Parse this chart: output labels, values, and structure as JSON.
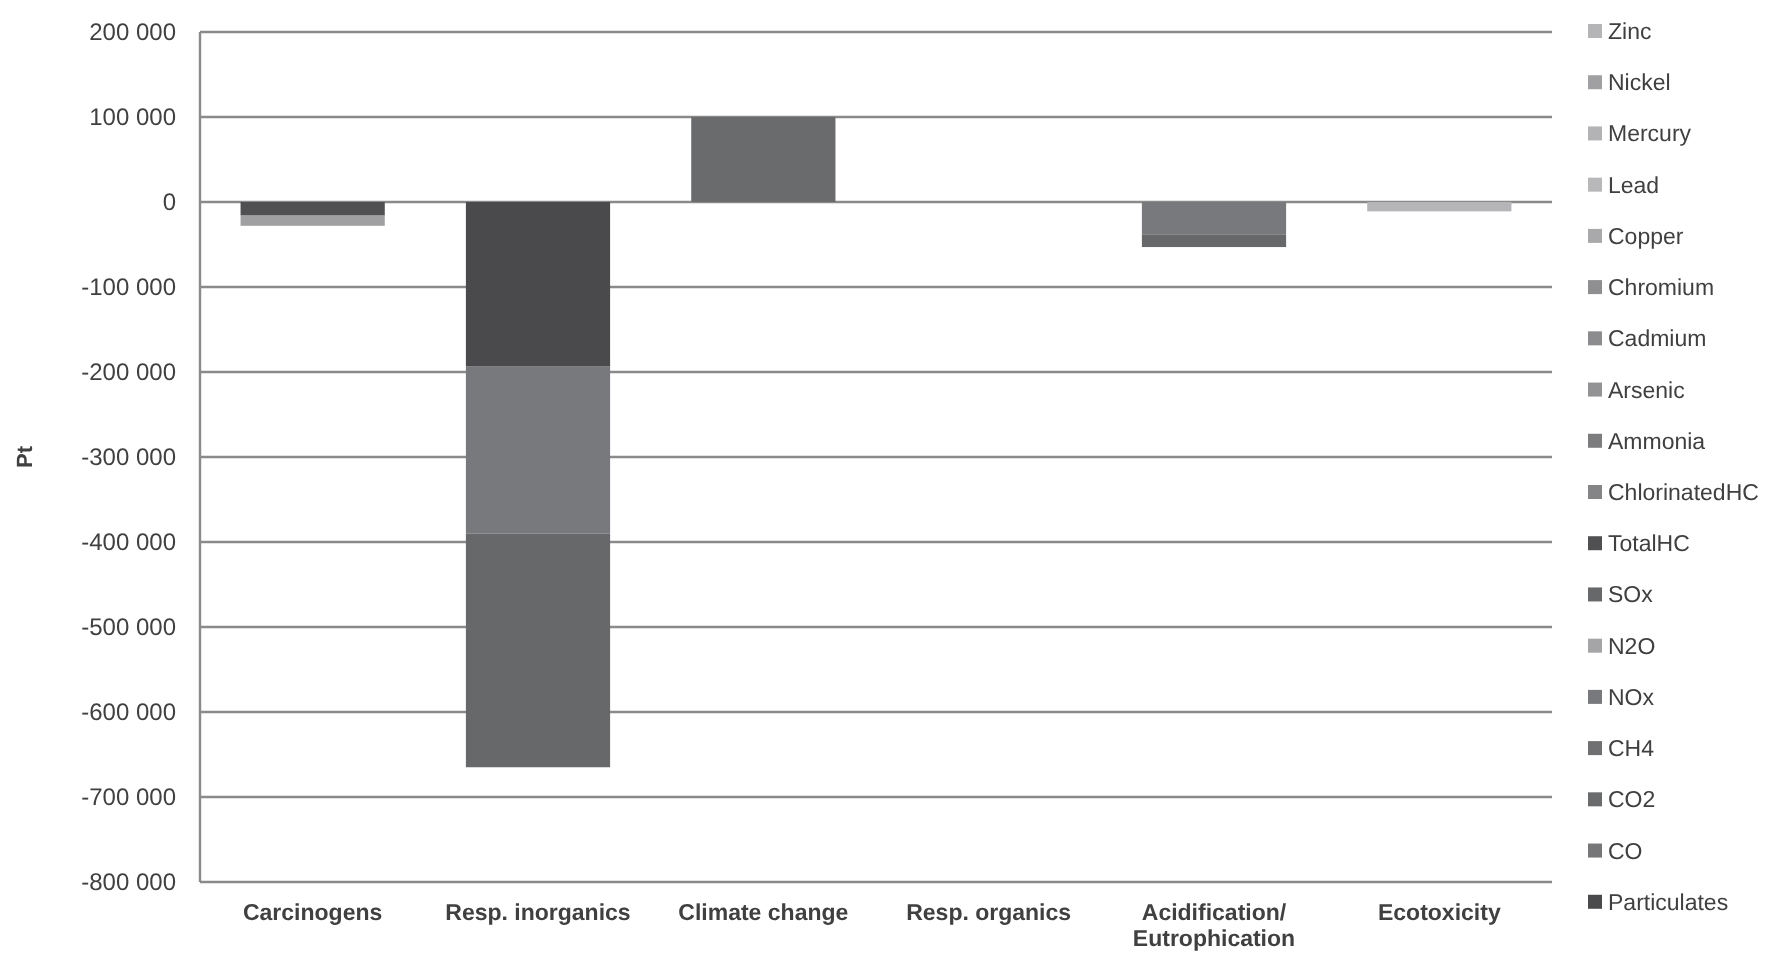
{
  "chart_data": {
    "type": "bar",
    "stacked": true,
    "ylabel": "Pt",
    "categories": [
      "Carcinogens",
      "Resp. inorganics",
      "Climate change",
      "Resp. organics",
      "Acidification/ Eutrophication",
      "Ecotoxicity"
    ],
    "ylim": [
      -800000,
      200000
    ],
    "yticks": [
      {
        "value": -800000,
        "label": "-800 000"
      },
      {
        "value": -700000,
        "label": "-700 000"
      },
      {
        "value": -600000,
        "label": "-600 000"
      },
      {
        "value": -500000,
        "label": "-500 000"
      },
      {
        "value": -400000,
        "label": "-400 000"
      },
      {
        "value": -300000,
        "label": "-300 000"
      },
      {
        "value": -200000,
        "label": "-200 000"
      },
      {
        "value": -100000,
        "label": "-100 000"
      },
      0,
      {
        "value": 100000,
        "label": "100 000"
      },
      {
        "value": 200000,
        "label": "200 000"
      }
    ],
    "grid": "y",
    "legend": "right",
    "series": [
      {
        "name": "Particulates",
        "color": "#4a4a4c",
        "values": [
          null,
          -193000,
          null,
          null,
          null,
          null
        ]
      },
      {
        "name": "CO",
        "color": "#767678",
        "values": [
          null,
          null,
          null,
          null,
          null,
          null
        ]
      },
      {
        "name": "CO2",
        "color": "#6a6b6d",
        "values": [
          null,
          null,
          100000,
          null,
          null,
          null
        ]
      },
      {
        "name": "CH4",
        "color": "#707072",
        "values": [
          null,
          null,
          null,
          null,
          null,
          null
        ]
      },
      {
        "name": "NOx",
        "color": "#78797c",
        "values": [
          null,
          -197000,
          null,
          null,
          -38000,
          null
        ]
      },
      {
        "name": "N2O",
        "color": "#a5a5a7",
        "values": [
          null,
          null,
          null,
          null,
          null,
          null
        ]
      },
      {
        "name": "SOx",
        "color": "#67686a",
        "values": [
          null,
          -275000,
          null,
          null,
          -15000,
          null
        ]
      },
      {
        "name": "TotalHC",
        "color": "#505052",
        "values": [
          -16000,
          null,
          null,
          null,
          null,
          null
        ]
      },
      {
        "name": "ChlorinatedHC",
        "color": "#858587",
        "values": [
          null,
          null,
          null,
          null,
          null,
          null
        ]
      },
      {
        "name": "Ammonia",
        "color": "#7c7c7e",
        "values": [
          null,
          null,
          null,
          null,
          null,
          null
        ]
      },
      {
        "name": "Arsenic",
        "color": "#939395",
        "values": [
          null,
          null,
          null,
          null,
          null,
          null
        ]
      },
      {
        "name": "Cadmium",
        "color": "#8c8c8e",
        "values": [
          null,
          null,
          null,
          null,
          null,
          null
        ]
      },
      {
        "name": "Chromium",
        "color": "#8f8f91",
        "values": [
          null,
          null,
          null,
          null,
          null,
          null
        ]
      },
      {
        "name": "Copper",
        "color": "#a9a9ab",
        "values": [
          null,
          null,
          null,
          null,
          null,
          null
        ]
      },
      {
        "name": "Lead",
        "color": "#b8b8ba",
        "values": [
          null,
          null,
          null,
          null,
          null,
          null
        ]
      },
      {
        "name": "Mercury",
        "color": "#b3b3b5",
        "values": [
          null,
          null,
          null,
          null,
          null,
          null
        ]
      },
      {
        "name": "Nickel",
        "color": "#a0a0a2",
        "values": [
          -12000,
          null,
          null,
          null,
          null,
          null
        ]
      },
      {
        "name": "Zinc",
        "color": "#b5b5b7",
        "values": [
          null,
          null,
          null,
          null,
          null,
          -11000
        ]
      }
    ]
  }
}
